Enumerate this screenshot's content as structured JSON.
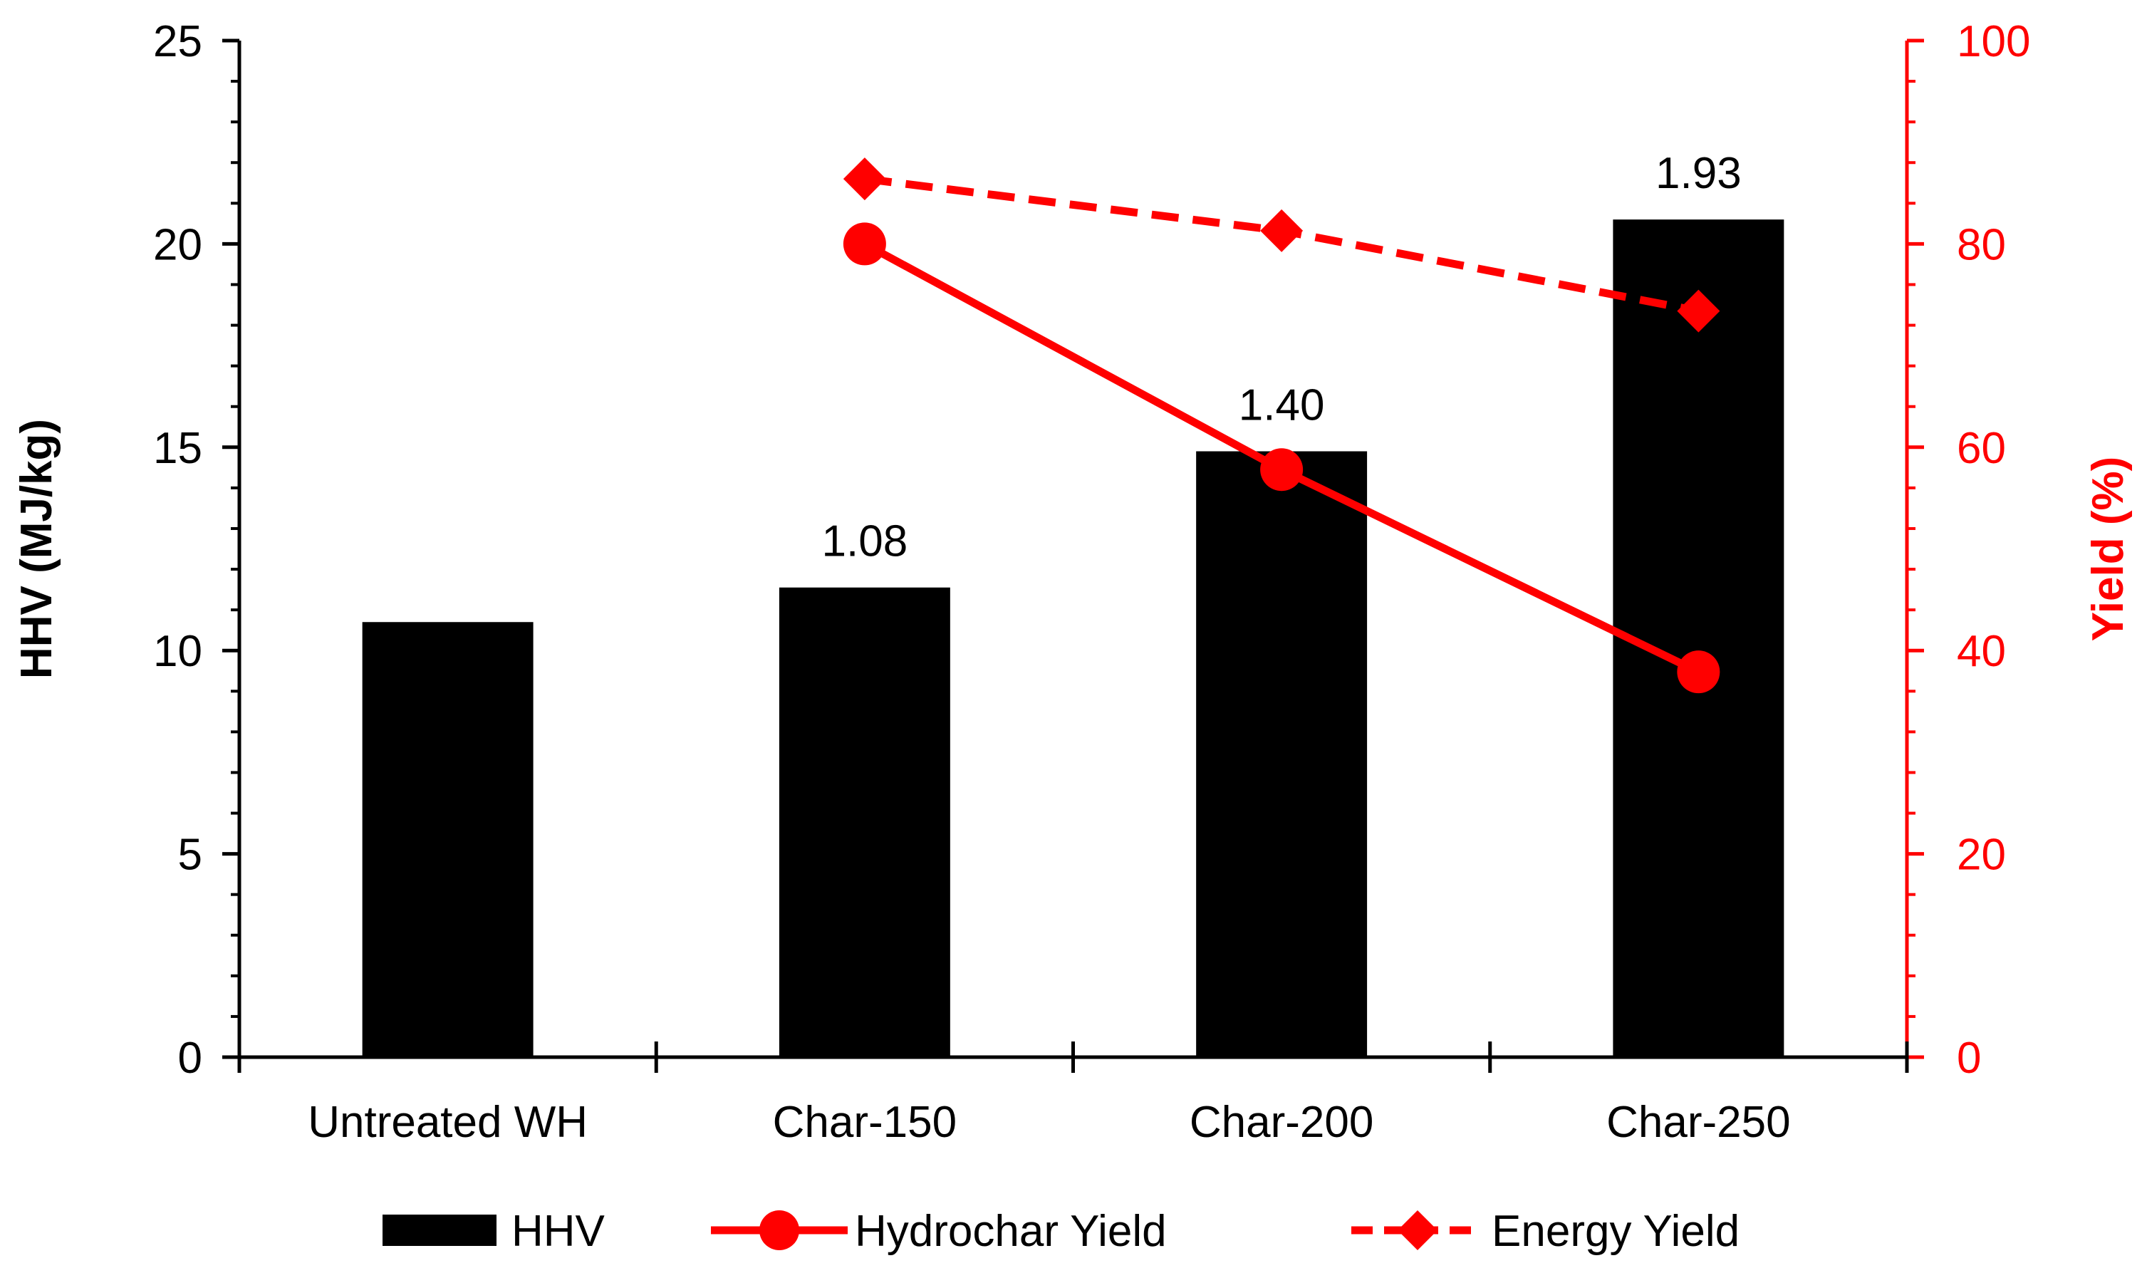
{
  "chart_data": {
    "type": "bar",
    "categories": [
      "Untreated WH",
      "Char-150",
      "Char-200",
      "Char-250"
    ],
    "series": [
      {
        "name": "HHV",
        "kind": "bar",
        "axis": "left",
        "color": "#000000",
        "values": [
          10.7,
          11.55,
          14.9,
          20.6
        ]
      },
      {
        "name": "Hydrochar Yield",
        "kind": "line",
        "axis": "right",
        "color": "#ff0000",
        "line_style": "solid",
        "marker": "circle",
        "values": [
          null,
          80,
          57.8,
          37.9
        ]
      },
      {
        "name": "Energy Yield",
        "kind": "line",
        "axis": "right",
        "color": "#ff0000",
        "line_style": "dashed",
        "marker": "diamond",
        "values": [
          null,
          86.4,
          81.3,
          73.4
        ]
      }
    ],
    "bar_labels": [
      "",
      "1.08",
      "1.40",
      "1.93"
    ],
    "ylabel": "HHV (MJ/kg)",
    "ylim": [
      0,
      25
    ],
    "yticks": [
      "0",
      "5",
      "10",
      "15",
      "20",
      "25"
    ],
    "y2label": "Yield (%)",
    "y2lim": [
      0,
      100
    ],
    "y2ticks": [
      "0",
      "20",
      "40",
      "60",
      "80",
      "100"
    ],
    "y2_color": "#ff0000",
    "legend": [
      "HHV",
      "Hydrochar Yield",
      "Energy Yield"
    ],
    "legend_position": "bottom",
    "grid": false
  }
}
